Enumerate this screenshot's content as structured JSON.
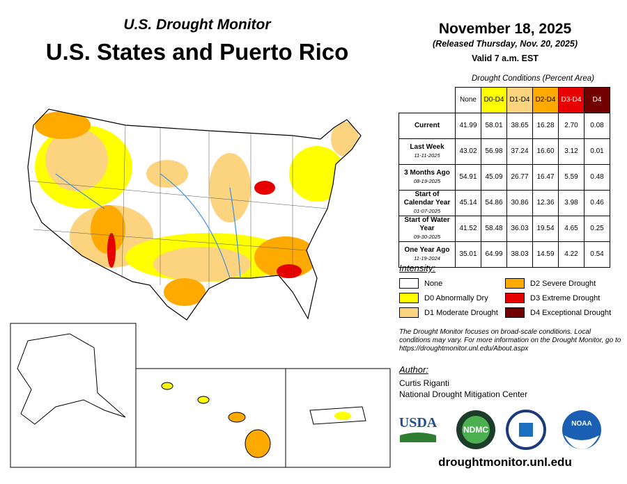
{
  "header": {
    "subtitle": "U.S. Drought Monitor",
    "title": "U.S. States and Puerto Rico"
  },
  "dates": {
    "date": "November 18, 2025",
    "released": "(Released Thursday, Nov. 20, 2025)",
    "valid": "Valid 7 a.m. EST"
  },
  "table": {
    "caption": "Drought Conditions (Percent Area)",
    "columns": [
      {
        "label": "None",
        "color": "#ffffff",
        "text_color": "#000000"
      },
      {
        "label": "D0-D4",
        "color": "#ffff00",
        "text_color": "#000000"
      },
      {
        "label": "D1-D4",
        "color": "#fcd37f",
        "text_color": "#000000"
      },
      {
        "label": "D2-D4",
        "color": "#ffaa00",
        "text_color": "#000000"
      },
      {
        "label": "D3-D4",
        "color": "#e60000",
        "text_color": "#ffffff"
      },
      {
        "label": "D4",
        "color": "#730000",
        "text_color": "#ffffff"
      }
    ],
    "rows": [
      {
        "label": "Current",
        "values": [
          "41.99",
          "58.01",
          "38.65",
          "16.28",
          "2.70",
          "0.08"
        ]
      },
      {
        "label": "Last Week",
        "date": "11-11-2025",
        "values": [
          "43.02",
          "56.98",
          "37.24",
          "16.60",
          "3.12",
          "0.01"
        ]
      },
      {
        "label": "3 Months Ago",
        "date": "08-19-2025",
        "values": [
          "54.91",
          "45.09",
          "26.77",
          "16.47",
          "5.59",
          "0.48"
        ]
      },
      {
        "label": "Start of Calendar Year",
        "date": "01-07-2025",
        "values": [
          "45.14",
          "54.86",
          "30.86",
          "12.36",
          "3.98",
          "0.46"
        ]
      },
      {
        "label": "Start of Water Year",
        "date": "09-30-2025",
        "values": [
          "41.52",
          "58.48",
          "36.03",
          "19.54",
          "4.65",
          "0.25"
        ]
      },
      {
        "label": "One Year Ago",
        "date": "11-19-2024",
        "values": [
          "35.01",
          "64.99",
          "38.03",
          "14.59",
          "4.22",
          "0.54"
        ]
      }
    ]
  },
  "legend": {
    "title": "Intensity:",
    "items": [
      {
        "label": "None",
        "color": "#ffffff"
      },
      {
        "label": "D0 Abnormally Dry",
        "color": "#ffff00"
      },
      {
        "label": "D1 Moderate Drought",
        "color": "#fcd37f"
      },
      {
        "label": "D2 Severe Drought",
        "color": "#ffaa00"
      },
      {
        "label": "D3 Extreme Drought",
        "color": "#e60000"
      },
      {
        "label": "D4 Exceptional Drought",
        "color": "#730000"
      }
    ]
  },
  "note": "The Drought Monitor focuses on broad-scale conditions. Local conditions may vary. For more information on the Drought Monitor, go to https://droughtmonitor.unl.edu/About.aspx",
  "author": {
    "heading": "Author:",
    "name": "Curtis Riganti",
    "organization": "National Drought Mitigation Center"
  },
  "logos": [
    "USDA",
    "NDMC",
    "NOAA"
  ],
  "url": "droughtmonitor.unl.edu"
}
